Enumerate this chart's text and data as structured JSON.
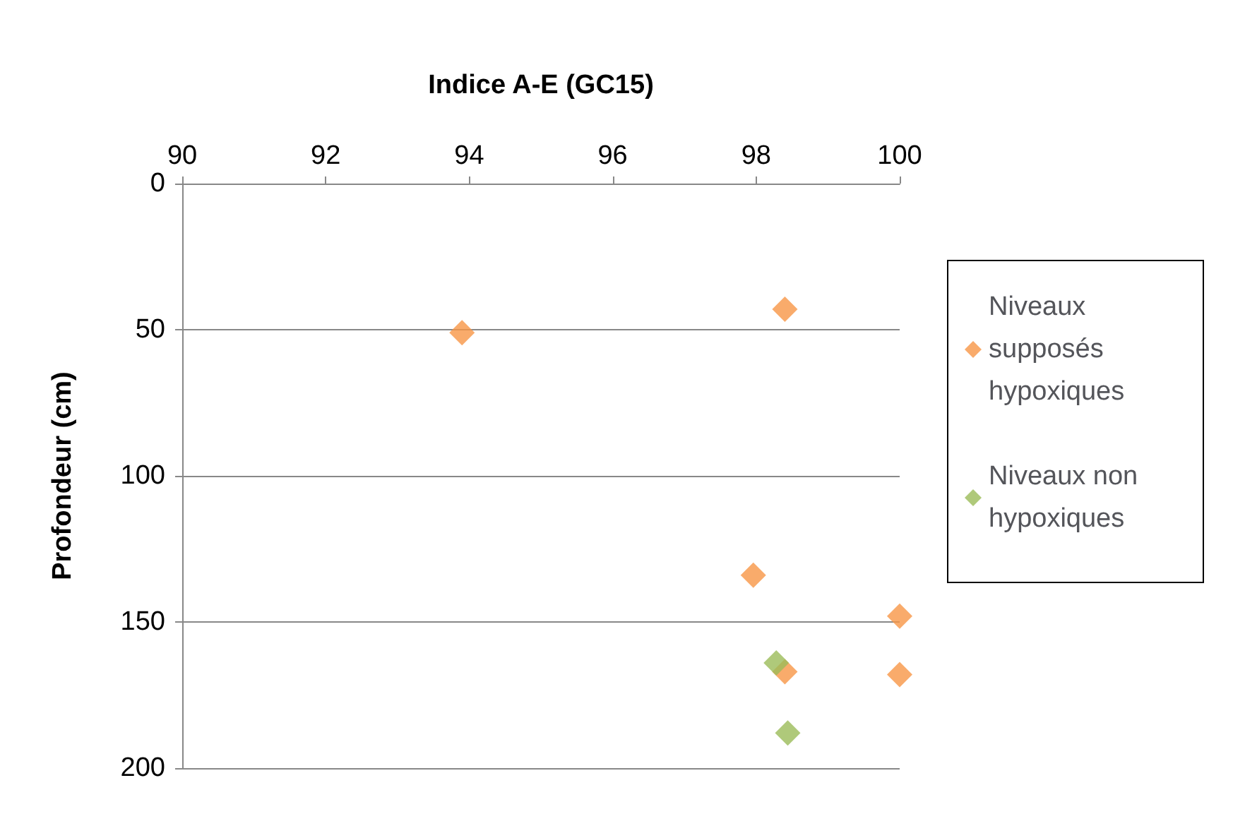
{
  "chart_data": {
    "type": "scatter",
    "xlabel": "Indice A-E (GC15)",
    "ylabel": "Profondeur (cm)",
    "xlim": [
      90,
      100
    ],
    "xticks": [
      90,
      92,
      94,
      96,
      98,
      100
    ],
    "ylim": [
      200,
      0
    ],
    "yticks": [
      0,
      50,
      100,
      150,
      200
    ],
    "grid": "y",
    "legend": "right",
    "marker": "diamond",
    "series": [
      {
        "name": "Niveaux supposés hypoxiques",
        "color": "#f79646",
        "x": [
          93.9,
          98.4,
          97.96,
          100,
          98.4,
          100
        ],
        "values": [
          51,
          43,
          134,
          148,
          167,
          168
        ]
      },
      {
        "name": "Niveaux non hypoxiques",
        "color": "#9bbb59",
        "x": [
          98.28,
          98.44
        ],
        "values": [
          164,
          188
        ]
      }
    ]
  }
}
